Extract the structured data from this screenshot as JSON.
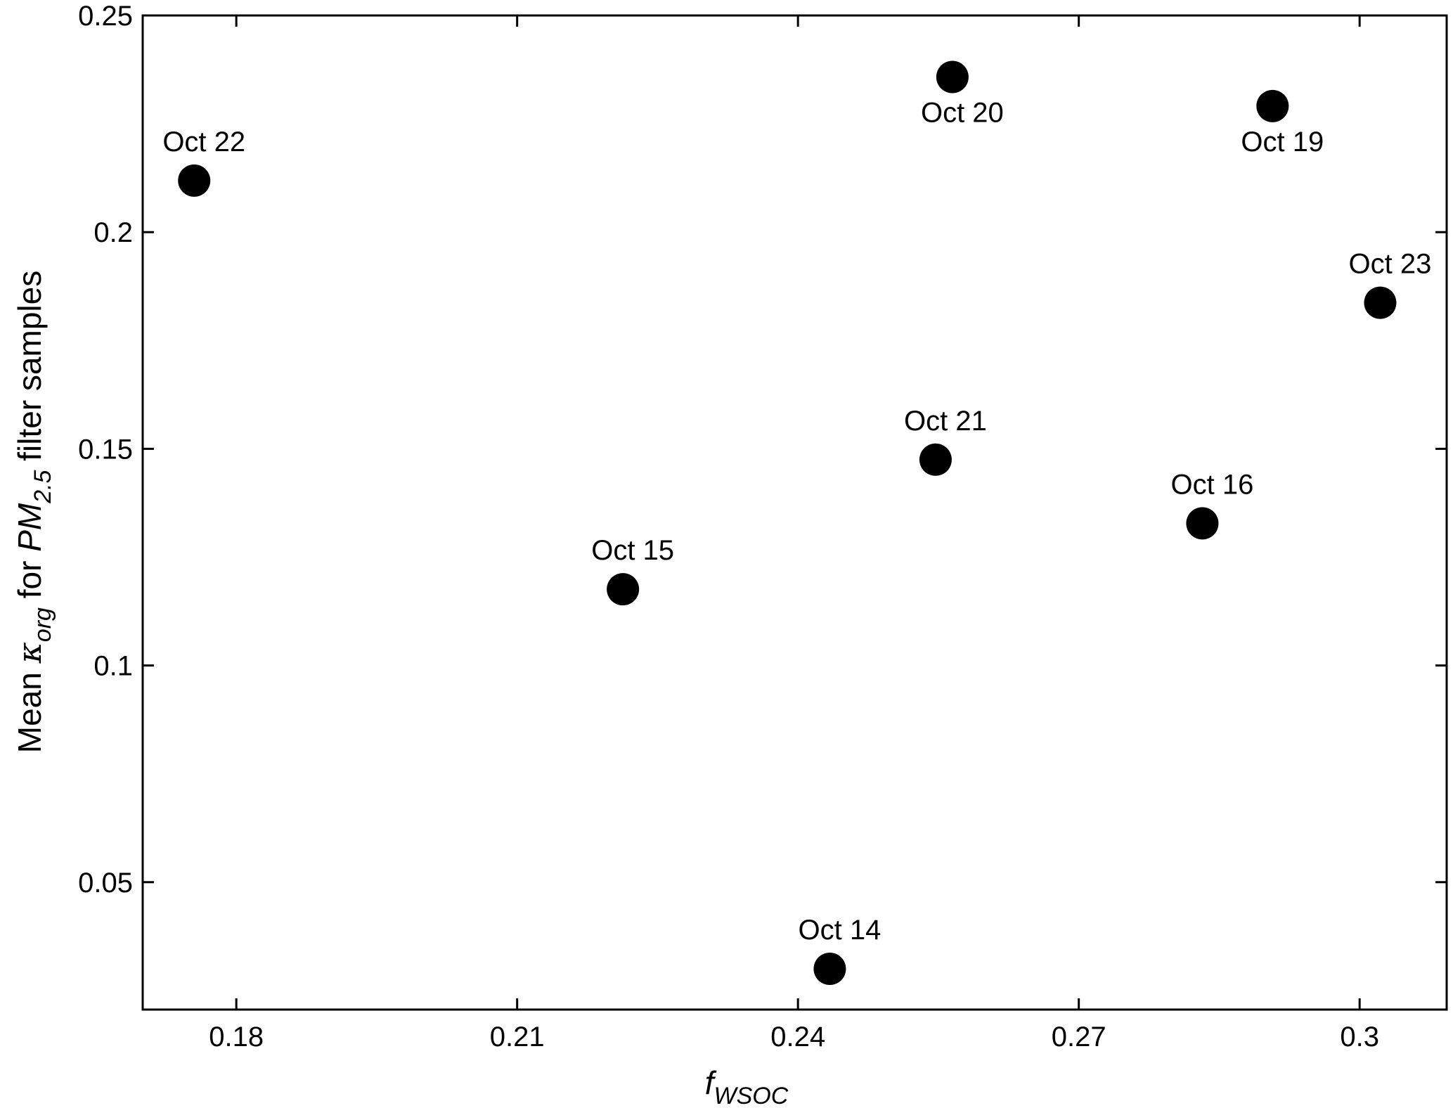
{
  "chart_data": {
    "type": "scatter",
    "title": "",
    "xlabel": {
      "main": "f",
      "sub": "WSOC"
    },
    "ylabel": {
      "prefix": "Mean ",
      "kappa": "κ",
      "kappa_sub": "org",
      "mid": " for ",
      "pm": "PM",
      "pm_sub": "2.5",
      "suffix": " filter samples"
    },
    "xlim": [
      0.17,
      0.3093
    ],
    "ylim": [
      0.0206,
      0.25
    ],
    "x_ticks": [
      0.18,
      0.21,
      0.24,
      0.27,
      0.3
    ],
    "x_tick_labels": [
      "0.18",
      "0.21",
      "0.24",
      "0.27",
      "0.3"
    ],
    "y_ticks": [
      0.05,
      0.1,
      0.15,
      0.2,
      0.25
    ],
    "y_tick_labels": [
      "0.05",
      "0.1",
      "0.15",
      "0.2",
      "0.25"
    ],
    "grid": false,
    "marker_color": "#000000",
    "points": [
      {
        "label": "Oct 22",
        "x": 0.1755,
        "y": 0.2119,
        "label_pos": "above"
      },
      {
        "label": "Oct 20",
        "x": 0.2565,
        "y": 0.2358,
        "label_pos": "below"
      },
      {
        "label": "Oct 19",
        "x": 0.2907,
        "y": 0.2291,
        "label_pos": "below"
      },
      {
        "label": "Oct 23",
        "x": 0.3022,
        "y": 0.1837,
        "label_pos": "above"
      },
      {
        "label": "Oct 21",
        "x": 0.2547,
        "y": 0.1475,
        "label_pos": "above"
      },
      {
        "label": "Oct 16",
        "x": 0.2832,
        "y": 0.1328,
        "label_pos": "above"
      },
      {
        "label": "Oct 15",
        "x": 0.2213,
        "y": 0.1176,
        "label_pos": "above"
      },
      {
        "label": "Oct 14",
        "x": 0.2434,
        "y": 0.03,
        "label_pos": "above"
      }
    ]
  }
}
